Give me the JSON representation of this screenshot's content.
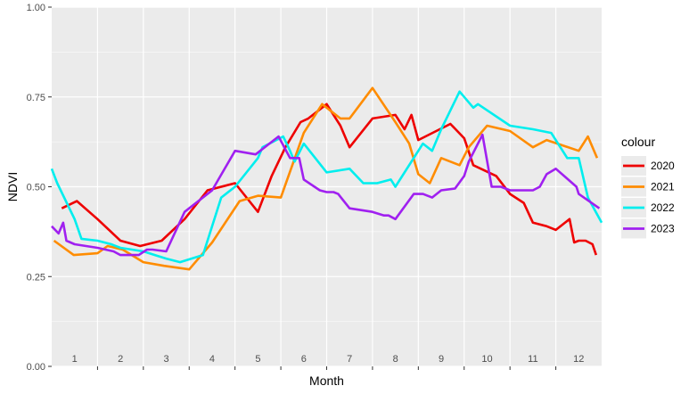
{
  "chart_data": {
    "type": "line",
    "title": "",
    "xlabel": "Month",
    "ylabel": "NDVI",
    "xlim": [
      0.5,
      12.5
    ],
    "ylim": [
      0,
      1
    ],
    "x_ticks": [
      1,
      2,
      3,
      4,
      5,
      6,
      7,
      8,
      9,
      10,
      11,
      12
    ],
    "x_tick_labels": [
      "1",
      "2",
      "3",
      "4",
      "5",
      "6",
      "7",
      "8",
      "9",
      "10",
      "11",
      "12"
    ],
    "y_ticks": [
      0,
      0.25,
      0.5,
      0.75,
      1
    ],
    "y_tick_labels": [
      "0.00",
      "0.25",
      "0.50",
      "0.75",
      "1.00"
    ],
    "grid": true,
    "legend_title": "colour",
    "legend_position": "right",
    "series": [
      {
        "name": "2020",
        "color": "#ee0000",
        "x": [
          0.72,
          1.05,
          1.5,
          2.0,
          2.43,
          2.9,
          3.4,
          3.9,
          4.5,
          5.0,
          5.3,
          5.6,
          5.93,
          6.1,
          6.5,
          6.8,
          7.0,
          7.5,
          8.0,
          8.2,
          8.35,
          8.5,
          9.2,
          9.5,
          9.7,
          10.2,
          10.5,
          10.8,
          11.0,
          11.3,
          11.5,
          11.8,
          11.9,
          12.0,
          12.15,
          12.3,
          12.38
        ],
        "y": [
          0.44,
          0.46,
          0.41,
          0.35,
          0.335,
          0.35,
          0.41,
          0.49,
          0.51,
          0.43,
          0.53,
          0.61,
          0.68,
          0.69,
          0.73,
          0.67,
          0.61,
          0.69,
          0.7,
          0.66,
          0.7,
          0.63,
          0.675,
          0.635,
          0.56,
          0.53,
          0.48,
          0.455,
          0.4,
          0.39,
          0.38,
          0.41,
          0.345,
          0.35,
          0.35,
          0.34,
          0.31
        ]
      },
      {
        "name": "2021",
        "color": "#ff8c00",
        "x": [
          0.55,
          0.98,
          1.5,
          1.72,
          2.05,
          2.5,
          2.95,
          3.5,
          4.0,
          4.6,
          5.0,
          5.5,
          6.0,
          6.4,
          6.8,
          7.0,
          7.5,
          8.0,
          8.3,
          8.5,
          8.75,
          9.0,
          9.4,
          9.6,
          10.0,
          10.5,
          11.0,
          11.3,
          12.0,
          12.2,
          12.4
        ],
        "y": [
          0.35,
          0.31,
          0.315,
          0.335,
          0.325,
          0.29,
          0.28,
          0.27,
          0.345,
          0.46,
          0.475,
          0.47,
          0.65,
          0.73,
          0.69,
          0.69,
          0.775,
          0.68,
          0.62,
          0.535,
          0.51,
          0.58,
          0.56,
          0.61,
          0.67,
          0.655,
          0.61,
          0.63,
          0.6,
          0.64,
          0.58
        ]
      },
      {
        "name": "2022",
        "color": "#00eeee",
        "x": [
          0.5,
          0.62,
          1.0,
          1.15,
          1.5,
          1.8,
          2.0,
          2.5,
          2.75,
          3.0,
          3.3,
          3.8,
          4.2,
          4.5,
          5.0,
          5.1,
          5.55,
          5.7,
          5.8,
          6.0,
          6.5,
          7.0,
          7.3,
          7.6,
          7.9,
          8.0,
          8.6,
          8.8,
          9.0,
          9.4,
          9.7,
          9.8,
          10.5,
          11.0,
          11.4,
          11.75,
          12.0,
          12.2,
          12.5
        ],
        "y": [
          0.55,
          0.51,
          0.41,
          0.355,
          0.35,
          0.34,
          0.33,
          0.32,
          0.31,
          0.3,
          0.29,
          0.31,
          0.47,
          0.5,
          0.58,
          0.61,
          0.64,
          0.6,
          0.57,
          0.62,
          0.54,
          0.55,
          0.51,
          0.51,
          0.52,
          0.5,
          0.62,
          0.6,
          0.66,
          0.765,
          0.72,
          0.73,
          0.67,
          0.66,
          0.65,
          0.58,
          0.58,
          0.47,
          0.4
        ]
      },
      {
        "name": "2023",
        "color": "#a020f0",
        "x": [
          0.5,
          0.65,
          0.75,
          0.82,
          1.0,
          1.5,
          1.85,
          2.0,
          2.4,
          2.58,
          2.7,
          3.0,
          3.4,
          4.0,
          4.5,
          4.95,
          5.45,
          5.7,
          5.9,
          6.0,
          6.35,
          6.5,
          6.65,
          6.75,
          7.0,
          7.5,
          7.75,
          7.85,
          8.0,
          8.4,
          8.55,
          8.6,
          8.8,
          9.0,
          9.3,
          9.5,
          9.6,
          9.9,
          10.1,
          10.3,
          10.5,
          11.0,
          11.15,
          11.3,
          11.5,
          11.95,
          12.0,
          12.45
        ],
        "y": [
          0.39,
          0.37,
          0.4,
          0.35,
          0.34,
          0.33,
          0.32,
          0.31,
          0.31,
          0.325,
          0.325,
          0.32,
          0.43,
          0.49,
          0.6,
          0.59,
          0.64,
          0.58,
          0.58,
          0.52,
          0.49,
          0.485,
          0.485,
          0.48,
          0.44,
          0.43,
          0.42,
          0.42,
          0.41,
          0.48,
          0.48,
          0.48,
          0.47,
          0.49,
          0.495,
          0.53,
          0.57,
          0.645,
          0.5,
          0.5,
          0.49,
          0.49,
          0.5,
          0.535,
          0.55,
          0.5,
          0.48,
          0.44
        ]
      }
    ]
  }
}
